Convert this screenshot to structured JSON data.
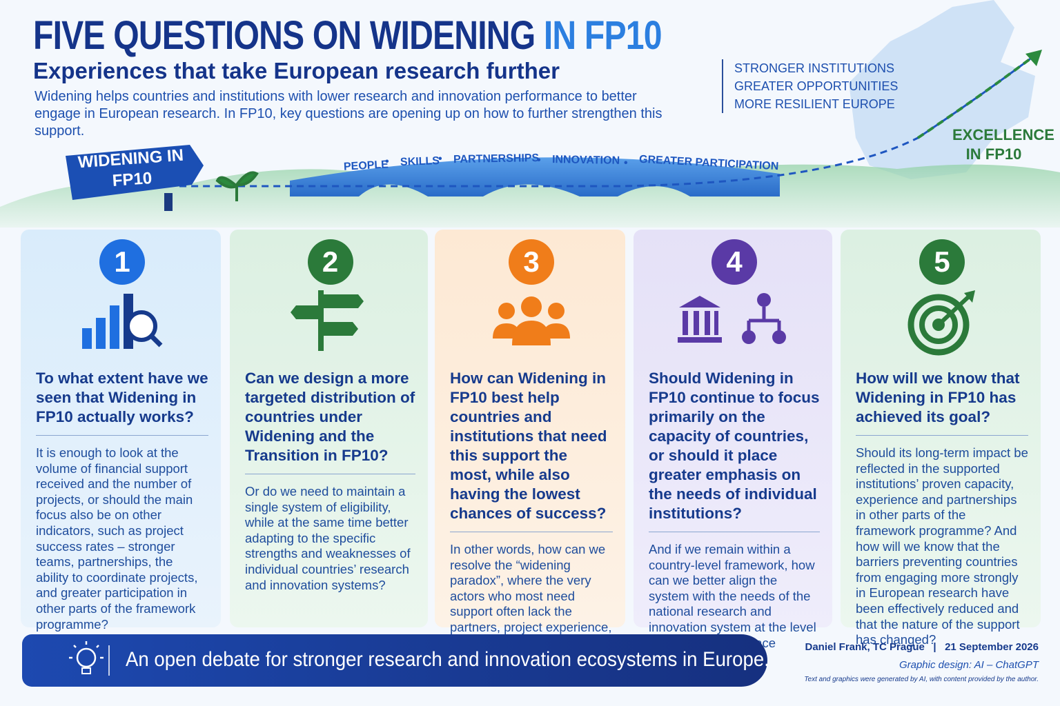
{
  "header": {
    "title_main": "FIVE QUESTIONS ON WIDENING",
    "title_accent": "IN FP10",
    "subtitle": "Experiences that take European research further",
    "intro": "Widening helps countries and institutions with lower research and innovation performance to better engage in European research. In FP10, key questions  are opening up on how to further strengthen this support.",
    "taglines": [
      "STRONGER INSTITUTIONS",
      "GREATER OPPORTUNITIES",
      "MORE RESILIENT EUROPE"
    ],
    "excellence": "EXCELLENCE IN FP10",
    "sign": "WIDENING IN FP10",
    "keywords": [
      "PEOPLE",
      "SKILLS",
      "PARTNERSHIPS",
      "INNOVATION",
      "GREATER PARTICIPATION"
    ]
  },
  "cards": [
    {
      "number": 1,
      "question": "To what extent have we seen that Widening in FP10 actually works?",
      "body": "It is enough to look at the volume of financial support received and the number of projects, or should the main focus also be on other indicators, such as project success rates – stronger teams, partnerships, the ability to coordinate projects, and greater participation in other parts of the framework programme?"
    },
    {
      "number": 2,
      "question": "Can we design a more targeted distribution of countries under Widening and the Transition in FP10?",
      "body": "Or do we need to maintain a single system of eligibility, while at the same time better adapting to the specific strengths and weaknesses of individual countries’ research and innovation systems?"
    },
    {
      "number": 3,
      "question": "How can Widening in FP10 best help countries and institutions that need this support the most, while also having the lowest chances of success?",
      "body": "In other words, how can we resolve the “widening paradox”, where the very actors who most need support often lack the partners, project experience, administrative capacity, and sometimes also national co-financing?"
    },
    {
      "number": 4,
      "question": "Should Widening in FP10 continue to focus primarily on the capacity of countries, or should it place greater emphasis on the needs of individual institutions?",
      "body": "And if we remain within a country-level framework, how can we better align the system with the needs of the national research and innovation system at the level of institutions that face specific challenges?"
    },
    {
      "number": 5,
      "question": "How will we know that Widening in FP10 has achieved its goal?",
      "body": "Should its long-term impact be reflected in the supported institutions’ proven capacity, experience and partnerships in other parts of the framework programme? And how will we know that the barriers preventing countries from engaging more strongly in European research have been effectively reduced and that the nature of the support has changed?"
    }
  ],
  "footer": {
    "banner": "An open debate for stronger research and innovation ecosystems in Europe.",
    "author": "Daniel Frank, TC Prague",
    "date": "21 September 2026",
    "credit": "Graphic design: AI – ChatGPT",
    "note": "Text and graphics were generated by AI, with content provided by the author."
  }
}
